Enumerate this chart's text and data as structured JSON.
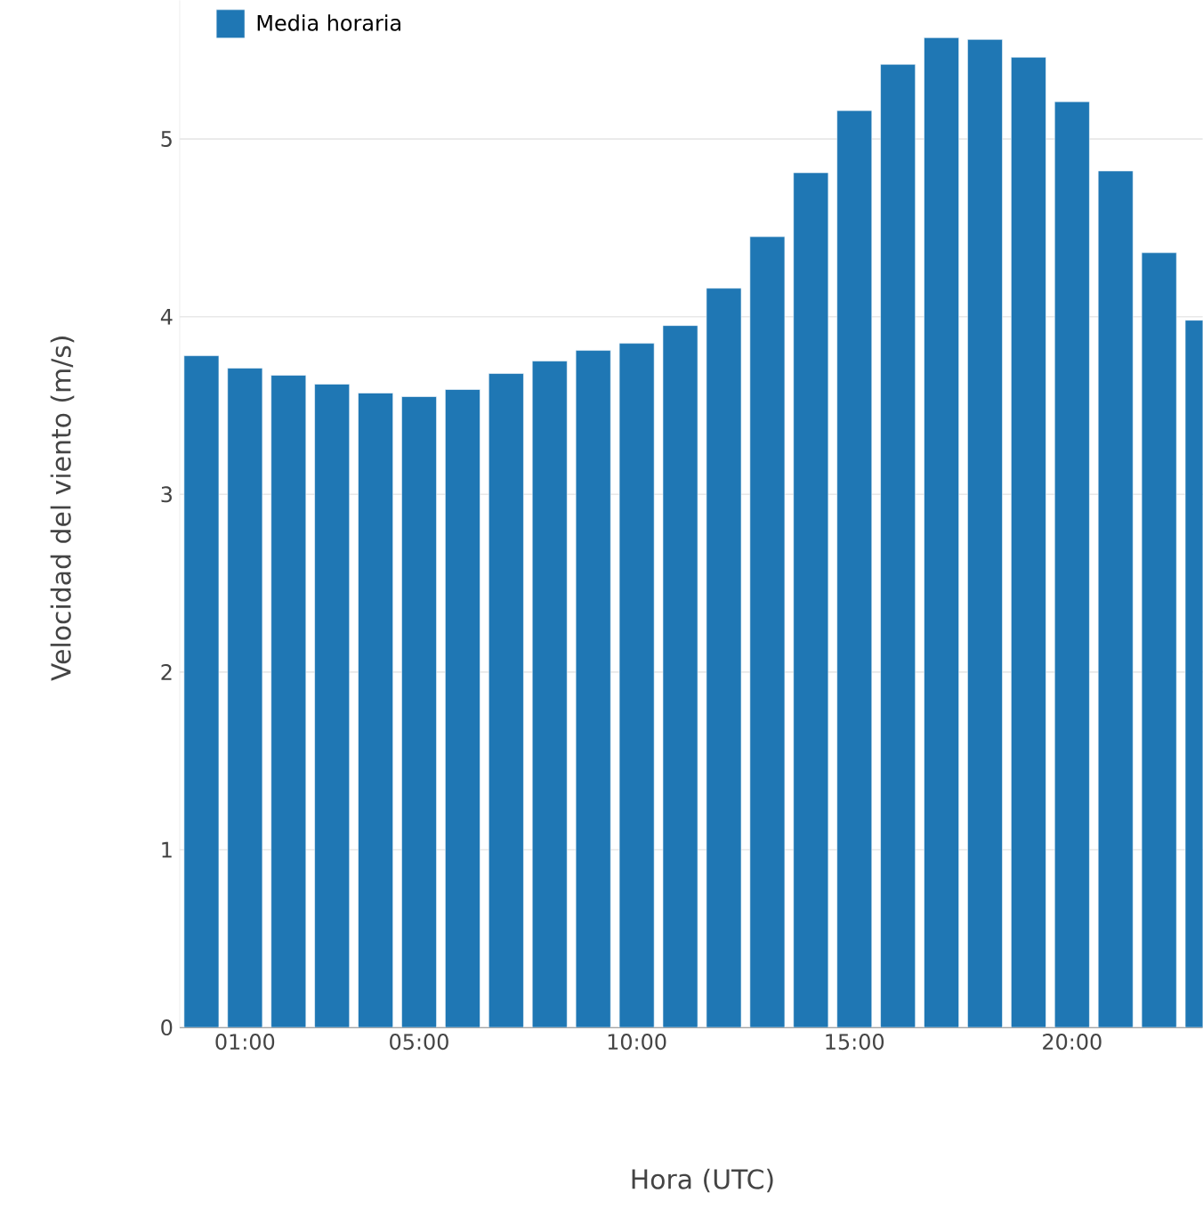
{
  "chart_data": {
    "type": "bar",
    "xlabel": "Hora (UTC)",
    "ylabel": "Velocidad del viento (m/s)",
    "x": [
      0,
      1,
      2,
      3,
      4,
      5,
      6,
      7,
      8,
      9,
      10,
      11,
      12,
      13,
      14,
      15,
      16,
      17,
      18,
      19,
      20,
      21,
      22,
      23
    ],
    "series": [
      {
        "name": "Media horaria",
        "color": "#1f77b4",
        "values": [
          3.78,
          3.71,
          3.67,
          3.62,
          3.57,
          3.55,
          3.59,
          3.68,
          3.75,
          3.81,
          3.85,
          3.95,
          4.16,
          4.45,
          4.81,
          5.16,
          5.42,
          5.57,
          5.56,
          5.46,
          5.21,
          4.82,
          4.36,
          3.98
        ]
      }
    ],
    "xlim": [
      -0.5,
      23
    ],
    "ylim": [
      0,
      5.78
    ],
    "xticks": [
      {
        "value": 1,
        "label": "01:00"
      },
      {
        "value": 5,
        "label": "05:00"
      },
      {
        "value": 10,
        "label": "10:00"
      },
      {
        "value": 15,
        "label": "15:00"
      },
      {
        "value": 20,
        "label": "20:00"
      }
    ],
    "yticks": [
      0,
      1,
      2,
      3,
      4,
      5
    ],
    "grid": "y",
    "legend": "top left"
  }
}
